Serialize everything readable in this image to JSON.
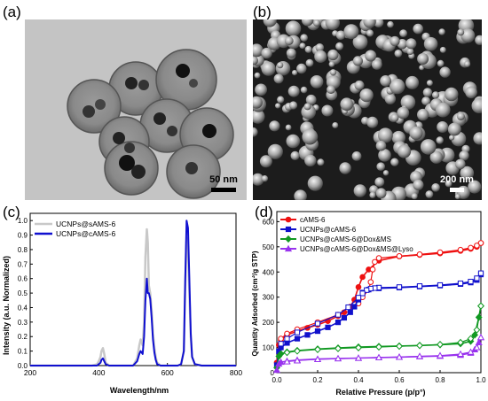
{
  "panels": {
    "a": {
      "letter": "(a)",
      "scale_label": "50 nm"
    },
    "b": {
      "letter": "(b)",
      "scale_label": "200 nm"
    },
    "c": {
      "letter": "(c)"
    },
    "d": {
      "letter": "(d)"
    }
  },
  "chart_data": [
    {
      "type": "line",
      "panel": "c",
      "xlabel": "Wavelength/nm",
      "ylabel": "Intensity (a.u. Normalized)",
      "xlim": [
        200,
        800
      ],
      "ylim": [
        0,
        1.05
      ],
      "xticks": [
        200,
        400,
        600,
        800
      ],
      "yticks": [
        0.0,
        0.1,
        0.2,
        0.3,
        0.4,
        0.5,
        0.6,
        0.7,
        0.8,
        0.9,
        1.0
      ],
      "ytick_labels": [
        "0.0",
        "0.1",
        "0.2",
        "0.3",
        "0.4",
        "0.5",
        "0.6",
        "0.7",
        "0.8",
        "0.9",
        "1.0"
      ],
      "legend_position": "top-left",
      "series": [
        {
          "name": "UCNPs@sAMS-6",
          "color": "#c8c8c8",
          "x": [
            200,
            380,
            395,
            400,
            405,
            408,
            412,
            416,
            420,
            430,
            500,
            512,
            518,
            522,
            525,
            528,
            532,
            536,
            540,
            543,
            546,
            550,
            554,
            558,
            562,
            566,
            570,
            580,
            600,
            630,
            640,
            648,
            652,
            656,
            660,
            664,
            668,
            672,
            680,
            700,
            800
          ],
          "y": [
            0,
            0,
            0.01,
            0.03,
            0.06,
            0.1,
            0.12,
            0.08,
            0.02,
            0,
            0,
            0.05,
            0.14,
            0.18,
            0.16,
            0.14,
            0.3,
            0.75,
            0.94,
            0.85,
            0.55,
            0.5,
            0.38,
            0.22,
            0.12,
            0.06,
            0.02,
            0,
            0,
            0,
            0.01,
            0.1,
            0.55,
            0.88,
            0.82,
            0.5,
            0.2,
            0.06,
            0.01,
            0,
            0
          ]
        },
        {
          "name": "UCNPs@cAMS-6",
          "color": "#1010d0",
          "x": [
            200,
            395,
            400,
            405,
            408,
            412,
            416,
            420,
            430,
            500,
            512,
            518,
            522,
            525,
            528,
            532,
            536,
            540,
            543,
            546,
            550,
            554,
            558,
            562,
            566,
            570,
            580,
            600,
            630,
            640,
            648,
            652,
            656,
            660,
            664,
            668,
            672,
            680,
            700,
            800
          ],
          "y": [
            0,
            0,
            0.01,
            0.02,
            0.04,
            0.05,
            0.03,
            0.01,
            0,
            0,
            0.03,
            0.08,
            0.1,
            0.09,
            0.08,
            0.2,
            0.45,
            0.6,
            0.5,
            0.5,
            0.46,
            0.33,
            0.18,
            0.09,
            0.04,
            0.01,
            0,
            0,
            0,
            0.01,
            0.1,
            0.6,
            1.0,
            0.95,
            0.6,
            0.22,
            0.06,
            0.01,
            0,
            0
          ]
        }
      ]
    },
    {
      "type": "line",
      "panel": "d",
      "xlabel": "Relative Pressure (p/p°)",
      "ylabel_parts": [
        "Quantity Adsorbed (cm",
        "3",
        "/g STP)"
      ],
      "xlim": [
        0,
        1.0
      ],
      "ylim": [
        0,
        640
      ],
      "xticks": [
        0.0,
        0.2,
        0.4,
        0.6,
        0.8,
        1.0
      ],
      "xtick_labels": [
        "0.0",
        "0.2",
        "0.4",
        "0.6",
        "0.8",
        "1.0"
      ],
      "yticks": [
        0,
        100,
        200,
        300,
        400,
        500,
        600
      ],
      "legend_position": "top-left",
      "series": [
        {
          "name": "cAMS-6",
          "color": "#ee1111",
          "marker": "circle",
          "adsorption_x": [
            0.0,
            0.01,
            0.02,
            0.05,
            0.1,
            0.15,
            0.2,
            0.25,
            0.3,
            0.33,
            0.36,
            0.38,
            0.4,
            0.42,
            0.45,
            0.5,
            0.6,
            0.7,
            0.8,
            0.9,
            0.95,
            0.98,
            1.0
          ],
          "adsorption_y": [
            40,
            110,
            130,
            150,
            165,
            178,
            190,
            205,
            225,
            240,
            262,
            290,
            340,
            380,
            410,
            445,
            462,
            468,
            474,
            484,
            492,
            500,
            515
          ],
          "desorption_x": [
            1.0,
            0.98,
            0.95,
            0.9,
            0.8,
            0.7,
            0.6,
            0.5,
            0.48,
            0.47,
            0.46,
            0.45,
            0.42,
            0.4,
            0.35,
            0.3,
            0.2,
            0.1,
            0.05,
            0.02
          ],
          "desorption_y": [
            515,
            505,
            496,
            488,
            478,
            470,
            463,
            455,
            440,
            410,
            360,
            330,
            300,
            275,
            250,
            230,
            200,
            172,
            155,
            135
          ]
        },
        {
          "name": "UCNPs@cAMS-6",
          "color": "#1111cc",
          "marker": "square",
          "adsorption_x": [
            0.0,
            0.01,
            0.02,
            0.05,
            0.1,
            0.15,
            0.2,
            0.25,
            0.3,
            0.33,
            0.36,
            0.38,
            0.4,
            0.42,
            0.45,
            0.5,
            0.6,
            0.7,
            0.8,
            0.9,
            0.95,
            0.98,
            1.0
          ],
          "adsorption_y": [
            30,
            85,
            100,
            118,
            135,
            150,
            165,
            180,
            200,
            218,
            240,
            262,
            290,
            318,
            330,
            335,
            338,
            342,
            346,
            352,
            358,
            368,
            390
          ],
          "desorption_x": [
            1.0,
            0.98,
            0.95,
            0.9,
            0.8,
            0.7,
            0.6,
            0.5,
            0.48,
            0.46,
            0.44,
            0.42,
            0.4,
            0.35,
            0.3,
            0.2,
            0.1,
            0.05,
            0.02
          ],
          "desorption_y": [
            395,
            375,
            362,
            355,
            348,
            344,
            340,
            338,
            336,
            334,
            328,
            315,
            298,
            260,
            230,
            195,
            160,
            135,
            115
          ]
        },
        {
          "name": "UCNPs@cAMS-6@Dox&MS",
          "color": "#119922",
          "marker": "diamond",
          "adsorption_x": [
            0.0,
            0.01,
            0.02,
            0.05,
            0.1,
            0.2,
            0.3,
            0.4,
            0.5,
            0.6,
            0.7,
            0.8,
            0.9,
            0.95,
            0.97,
            0.99,
            1.0
          ],
          "adsorption_y": [
            20,
            65,
            75,
            82,
            88,
            94,
            98,
            102,
            104,
            106,
            108,
            111,
            115,
            125,
            150,
            220,
            265
          ],
          "desorption_x": [
            1.0,
            0.98,
            0.95,
            0.9,
            0.8,
            0.7,
            0.6,
            0.5,
            0.4,
            0.3,
            0.2,
            0.1,
            0.05
          ],
          "desorption_y": [
            265,
            170,
            135,
            120,
            112,
            108,
            105,
            102,
            99,
            96,
            92,
            86,
            80
          ]
        },
        {
          "name": "UCNPs@cAMS-6@Dox&MS@Lyso",
          "color": "#9933ee",
          "marker": "triangle",
          "adsorption_x": [
            0.0,
            0.01,
            0.02,
            0.05,
            0.1,
            0.2,
            0.3,
            0.4,
            0.5,
            0.6,
            0.7,
            0.8,
            0.9,
            0.95,
            0.97,
            0.99,
            1.0
          ],
          "adsorption_y": [
            10,
            35,
            42,
            46,
            50,
            54,
            56,
            58,
            60,
            62,
            64,
            66,
            70,
            78,
            92,
            120,
            140
          ],
          "desorption_x": [
            1.0,
            0.98,
            0.95,
            0.9,
            0.8,
            0.7,
            0.6,
            0.5,
            0.4,
            0.3,
            0.2,
            0.1,
            0.05
          ],
          "desorption_y": [
            140,
            100,
            82,
            74,
            68,
            65,
            62,
            60,
            58,
            56,
            53,
            48,
            44
          ]
        }
      ]
    }
  ]
}
